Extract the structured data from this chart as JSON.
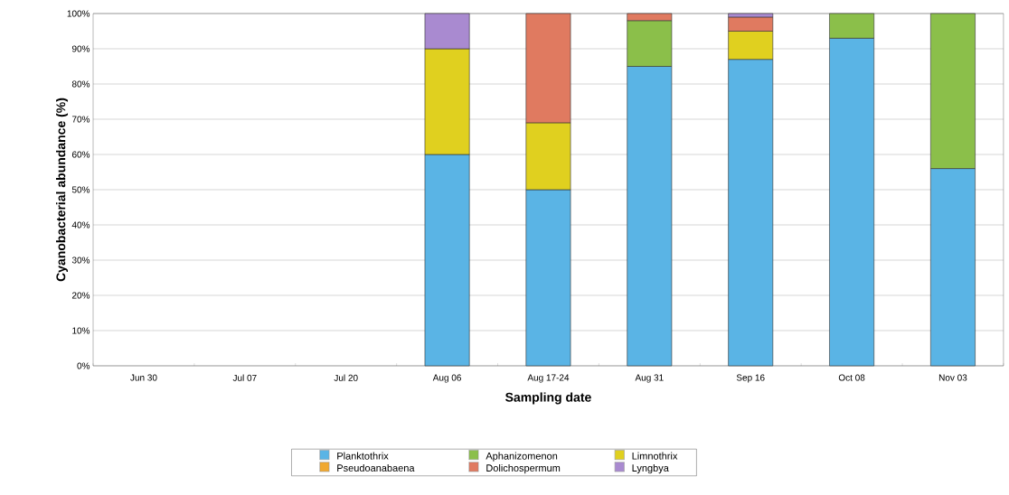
{
  "chart_data": {
    "type": "bar",
    "stacked": true,
    "xlabel": "Sampling date",
    "ylabel": "Cyanobacterial abundance (%)",
    "categories": [
      "Jun 30",
      "Jul 07",
      "Jul 20",
      "Aug 06",
      "Aug 17-24",
      "Aug 31",
      "Sep 16",
      "Oct 08",
      "Nov 03"
    ],
    "series": [
      {
        "name": "Planktothrix",
        "color": "#5ab4e5",
        "values": [
          null,
          null,
          null,
          60,
          50,
          85,
          87,
          93,
          56
        ]
      },
      {
        "name": "Aphanizomenon",
        "color": "#8bbf4a",
        "values": [
          null,
          null,
          null,
          0,
          0,
          13,
          0,
          7,
          44
        ]
      },
      {
        "name": "Limnothrix",
        "color": "#e0d01f",
        "values": [
          null,
          null,
          null,
          30,
          19,
          0,
          8,
          0,
          0
        ]
      },
      {
        "name": "Pseudoanabaena",
        "color": "#f0a830",
        "values": [
          null,
          null,
          null,
          0,
          0,
          0,
          0,
          0,
          0
        ]
      },
      {
        "name": "Dolichospermum",
        "color": "#e07a60",
        "values": [
          null,
          null,
          null,
          0,
          31,
          2,
          4,
          0,
          0
        ]
      },
      {
        "name": "Lyngbya",
        "color": "#a98ad0",
        "values": [
          null,
          null,
          null,
          10,
          0,
          0,
          1,
          0,
          0
        ]
      }
    ],
    "ylim": [
      0,
      100
    ],
    "yticks": [
      {
        "value": 0,
        "label": "0%"
      },
      {
        "value": 10,
        "label": "10%"
      },
      {
        "value": 20,
        "label": "20%"
      },
      {
        "value": 30,
        "label": "30%"
      },
      {
        "value": 40,
        "label": "40%"
      },
      {
        "value": 50,
        "label": "50%"
      },
      {
        "value": 60,
        "label": "60%"
      },
      {
        "value": 70,
        "label": "70%"
      },
      {
        "value": 80,
        "label": "80%"
      },
      {
        "value": 90,
        "label": "90%"
      },
      {
        "value": 100,
        "label": "100%"
      }
    ],
    "grid": "y",
    "legend": "bottom"
  }
}
